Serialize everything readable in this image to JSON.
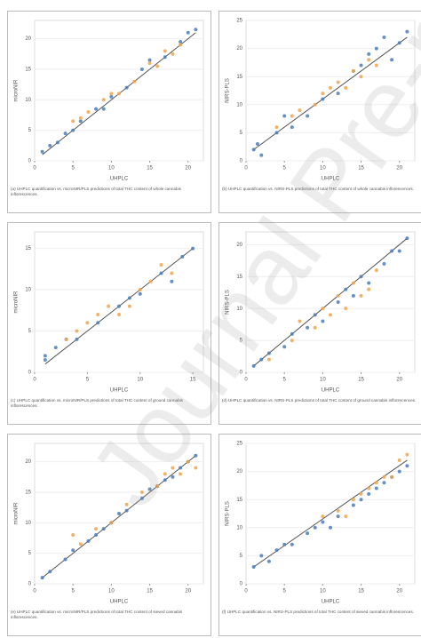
{
  "chart_data": [
    {
      "type": "scatter",
      "x_label": "UHPLC",
      "y_label": "microNIR",
      "caption": "(a) UHPLC quantification vs. microNIR/PLS predictions of total THC content of whole cannabis inflorescences.",
      "xlim": [
        0,
        22
      ],
      "ylim": [
        0,
        23
      ],
      "xticks": [
        0,
        5,
        10,
        15,
        20
      ],
      "yticks": [
        0,
        5,
        10,
        15,
        20
      ],
      "series": [
        {
          "color": "#4a7ebb",
          "x": [
            1,
            2,
            3,
            4,
            5,
            6,
            8,
            9,
            10,
            12,
            14,
            15,
            17,
            19,
            20,
            21
          ],
          "values": [
            1.5,
            2.5,
            3,
            4.5,
            5,
            6.5,
            8.5,
            8.5,
            10.5,
            12,
            15,
            16.5,
            17,
            19.5,
            21,
            21.5
          ]
        },
        {
          "color": "#f0a44c",
          "x": [
            5,
            6,
            7,
            9,
            10,
            11,
            13,
            15,
            16,
            17,
            18,
            19
          ],
          "values": [
            6.5,
            7,
            8,
            10,
            11,
            11,
            13,
            16,
            15.5,
            18,
            17.5,
            19
          ]
        }
      ],
      "fit": {
        "color": "#555555",
        "x": [
          1,
          21
        ],
        "values": [
          1,
          21
        ]
      }
    },
    {
      "type": "scatter",
      "x_label": "UHPLC",
      "y_label": "NIRS-PLS",
      "caption": "(b) UHPLC quantification vs. NIRS-PLS predictions of total THC content of whole cannabis inflorescences.",
      "xlim": [
        0,
        22
      ],
      "ylim": [
        0,
        25
      ],
      "xticks": [
        0,
        5,
        10,
        15,
        20
      ],
      "yticks": [
        0,
        5,
        10,
        15,
        20,
        25
      ],
      "series": [
        {
          "color": "#4a7ebb",
          "x": [
            1,
            1.5,
            2,
            4,
            5,
            6,
            8,
            10,
            12,
            14,
            15,
            16,
            17,
            18,
            19,
            20,
            21
          ],
          "values": [
            2,
            3,
            1,
            5,
            8,
            6,
            8,
            11,
            12,
            16,
            17,
            19,
            20,
            22,
            18,
            21,
            23
          ]
        },
        {
          "color": "#f0a44c",
          "x": [
            4,
            6,
            7,
            9,
            10,
            11,
            12,
            13,
            14,
            15,
            16,
            17
          ],
          "values": [
            6,
            8,
            9,
            10,
            12,
            13,
            14,
            13,
            16,
            15,
            18,
            17
          ]
        }
      ],
      "fit": {
        "color": "#555555",
        "x": [
          1,
          21
        ],
        "values": [
          2,
          22
        ]
      }
    },
    {
      "type": "scatter",
      "x_label": "UHPLC",
      "y_label": "microNIR",
      "caption": "(c) UHPLC quantification vs. microNIR/PLS predictions of total THC content of ground cannabis inflorescences.",
      "xlim": [
        0,
        16
      ],
      "ylim": [
        0,
        17
      ],
      "xticks": [
        0,
        5,
        10,
        15
      ],
      "yticks": [
        0,
        5,
        10,
        15
      ],
      "series": [
        {
          "color": "#4a7ebb",
          "x": [
            1,
            1,
            2,
            3,
            4,
            6,
            8,
            9,
            10,
            12,
            13,
            14,
            15
          ],
          "values": [
            1.5,
            2,
            3,
            4,
            4,
            6,
            8,
            9,
            9.5,
            12,
            11,
            14,
            15
          ]
        },
        {
          "color": "#f0a44c",
          "x": [
            3,
            4,
            5,
            6,
            7,
            8,
            9,
            10,
            11,
            12,
            13
          ],
          "values": [
            4,
            5,
            6,
            7,
            8,
            7,
            8,
            10,
            11,
            13,
            12
          ]
        }
      ],
      "fit": {
        "color": "#555555",
        "x": [
          1,
          15
        ],
        "values": [
          1,
          15
        ]
      }
    },
    {
      "type": "scatter",
      "x_label": "UHPLC",
      "y_label": "NIRS-PLS",
      "caption": "(d) UHPLC quantification vs. NIRS-PLS predictions of total THC content of ground cannabis inflorescences.",
      "xlim": [
        0,
        22
      ],
      "ylim": [
        0,
        22
      ],
      "xticks": [
        0,
        5,
        10,
        15,
        20
      ],
      "yticks": [
        0,
        5,
        10,
        15,
        20
      ],
      "series": [
        {
          "color": "#4a7ebb",
          "x": [
            1,
            2,
            3,
            5,
            6,
            8,
            9,
            10,
            12,
            13,
            14,
            15,
            16,
            18,
            19,
            20,
            21
          ],
          "values": [
            1,
            2,
            3,
            4,
            6,
            7,
            9,
            8,
            11,
            13,
            12,
            15,
            14,
            17,
            19,
            19,
            21
          ]
        },
        {
          "color": "#f0a44c",
          "x": [
            3,
            6,
            7,
            9,
            10,
            11,
            12,
            13,
            14,
            15,
            16,
            17
          ],
          "values": [
            2,
            5,
            8,
            7,
            10,
            9,
            12,
            10,
            14,
            12,
            13,
            16
          ]
        }
      ],
      "fit": {
        "color": "#555555",
        "x": [
          1,
          21
        ],
        "values": [
          1,
          21
        ]
      }
    },
    {
      "type": "scatter",
      "x_label": "UHPLC",
      "y_label": "microNIR",
      "caption": "(e) UHPLC quantification vs. microNIR/PLS predictions of total THC content of sieved cannabis inflorescences.",
      "xlim": [
        0,
        22
      ],
      "ylim": [
        0,
        23
      ],
      "xticks": [
        0,
        5,
        10,
        15,
        20
      ],
      "yticks": [
        0,
        5,
        10,
        15,
        20
      ],
      "series": [
        {
          "color": "#4a7ebb",
          "x": [
            1,
            2,
            4,
            5,
            7,
            8,
            9,
            10,
            11,
            12,
            14,
            15,
            16,
            17,
            18,
            19,
            20,
            21
          ],
          "values": [
            1,
            2,
            4,
            5.5,
            7,
            8,
            9,
            10,
            11.5,
            12,
            14,
            15.5,
            16,
            17,
            17.5,
            19,
            20,
            21
          ]
        },
        {
          "color": "#f0a44c",
          "x": [
            5,
            6,
            8,
            10,
            12,
            14,
            16,
            17,
            18,
            19,
            20,
            21
          ],
          "values": [
            8,
            6.5,
            9,
            10,
            13,
            15,
            16,
            18,
            19,
            18,
            20,
            19
          ]
        }
      ],
      "fit": {
        "color": "#555555",
        "x": [
          1,
          21
        ],
        "values": [
          1,
          21
        ]
      }
    },
    {
      "type": "scatter",
      "x_label": "UHPLC",
      "y_label": "NIRS-PLS",
      "caption": "(f) UHPLC quantification vs. NIRS-PLS predictions of total THC content of sieved cannabis inflorescences.",
      "xlim": [
        0,
        22
      ],
      "ylim": [
        0,
        25
      ],
      "xticks": [
        0,
        5,
        10,
        15,
        20
      ],
      "yticks": [
        0,
        5,
        10,
        15,
        20,
        25
      ],
      "series": [
        {
          "color": "#4a7ebb",
          "x": [
            1,
            2,
            3,
            4,
            5,
            6,
            8,
            9,
            10,
            11,
            12,
            14,
            15,
            16,
            17,
            18,
            19,
            20,
            21
          ],
          "values": [
            3,
            5,
            4,
            6,
            7,
            7,
            9,
            10,
            11,
            10,
            12,
            14,
            15,
            16,
            17,
            18,
            19,
            20,
            21
          ]
        },
        {
          "color": "#f0a44c",
          "x": [
            10,
            12,
            13,
            14,
            15,
            16,
            17,
            18,
            19,
            20,
            21
          ],
          "values": [
            12,
            13,
            12,
            15,
            16,
            17,
            18,
            19,
            19,
            22,
            23
          ]
        }
      ],
      "fit": {
        "color": "#555555",
        "x": [
          1,
          21
        ],
        "values": [
          3,
          22
        ]
      }
    }
  ],
  "watermark": "Journal Pre-proof"
}
